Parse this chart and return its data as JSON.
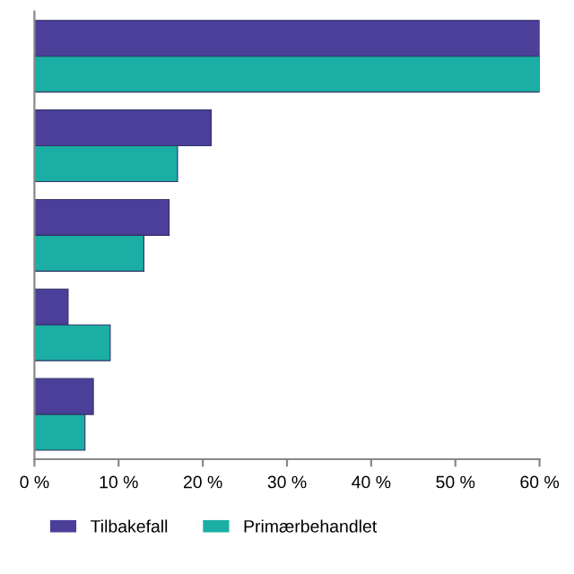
{
  "chart_data": {
    "type": "bar",
    "orientation": "horizontal",
    "categories": [
      null,
      null,
      null,
      null,
      null
    ],
    "series": [
      {
        "name": "Tilbakefall",
        "color": "#4b3f9a",
        "values": [
          60,
          21,
          16,
          4,
          7
        ]
      },
      {
        "name": "Primærbehandlet",
        "color": "#1aaea5",
        "values": [
          60,
          17,
          13,
          9,
          6
        ]
      }
    ],
    "xlim": [
      0,
      60
    ],
    "xticks": [
      {
        "value": 0,
        "label": "0 %"
      },
      {
        "value": 10,
        "label": "10 %"
      },
      {
        "value": 20,
        "label": "20 %"
      },
      {
        "value": 30,
        "label": "30 %"
      },
      {
        "value": 40,
        "label": "40 %"
      },
      {
        "value": 50,
        "label": "50 %"
      },
      {
        "value": 60,
        "label": "60 %"
      }
    ],
    "tick_labels": "x",
    "grid": false,
    "legend": "bottom"
  }
}
